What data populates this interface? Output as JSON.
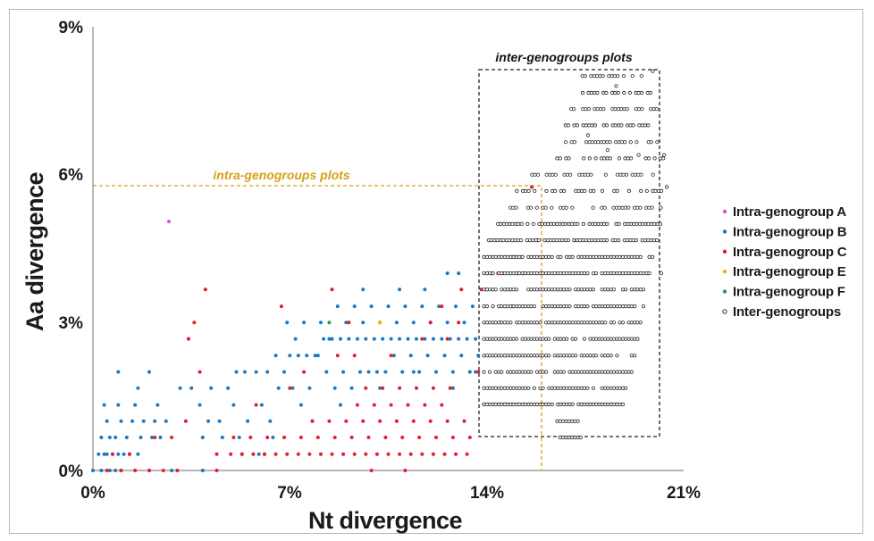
{
  "chart_data": {
    "type": "scatter",
    "xlabel": "Nt divergence",
    "ylabel": "Aa divergence",
    "x_ticks": [
      "0%",
      "7%",
      "14%",
      "21%"
    ],
    "y_ticks": [
      "0%",
      "3%",
      "6%",
      "9%"
    ],
    "xlim": [
      0,
      21
    ],
    "ylim": [
      0,
      9
    ],
    "grid": false,
    "legend_position": "right",
    "annotations": {
      "intra_box_label": "intra-genogroups plots",
      "inter_box_label": "inter-genogroups plots",
      "intra_region": {
        "x": [
          0,
          16
        ],
        "y": [
          0,
          5.75
        ]
      },
      "inter_region": {
        "x": [
          13.8,
          20.3
        ],
        "y": [
          0.7,
          8.1
        ]
      }
    },
    "series": [
      {
        "name": "Intra-genogroup A",
        "color": "#e84ac8",
        "marker": "filled",
        "x": [
          2.7
        ],
        "y": [
          5.05
        ]
      },
      {
        "name": "Intra-genogroup B",
        "color": "#1f78c0",
        "marker": "filled",
        "x": [
          0.2,
          0.4,
          0.5,
          0.7,
          0.9,
          1.1,
          1.3,
          1.6,
          0.3,
          0.6,
          0.8,
          1.2,
          1.7,
          2.1,
          2.4,
          0.5,
          1.0,
          1.4,
          1.8,
          2.2,
          2.6,
          0.4,
          0.9,
          1.5,
          2.3,
          3.1,
          3.5,
          3.8,
          4.2,
          4.8,
          5.1,
          5.4,
          5.8,
          6.2,
          6.5,
          6.8,
          7.0,
          7.3,
          7.6,
          7.9,
          8.2,
          8.5,
          8.8,
          9.1,
          9.4,
          9.7,
          10.0,
          10.3,
          10.6,
          10.9,
          11.2,
          11.5,
          11.8,
          12.1,
          12.4,
          12.7,
          13.0,
          13.3,
          13.6,
          4.5,
          5.0,
          5.5,
          6.0,
          6.6,
          7.1,
          7.7,
          8.3,
          8.9,
          9.5,
          10.1,
          10.7,
          11.3,
          11.9,
          12.5,
          13.1,
          13.7,
          5.2,
          6.3,
          7.4,
          8.6,
          9.2,
          9.8,
          10.4,
          11.0,
          11.6,
          12.2,
          12.8,
          13.4,
          6.9,
          7.5,
          8.1,
          8.7,
          9.3,
          9.9,
          10.5,
          11.1,
          11.7,
          12.3,
          12.9,
          13.5,
          7.2,
          8.4,
          9.0,
          9.6,
          10.2,
          10.8,
          11.4,
          12.0,
          12.6,
          13.2,
          8.0,
          9.6,
          10.9,
          11.8,
          12.6,
          13.0,
          3.9,
          4.1,
          4.6,
          5.3,
          5.9,
          6.4,
          7.8,
          8.8,
          10.2,
          11.4,
          12.8,
          13.6,
          1.6,
          2.0,
          0.9,
          3.4,
          0.0,
          0.3,
          0.6,
          0.8,
          1.0,
          2.0,
          2.8,
          3.9
        ],
        "y": [
          0.33,
          0.33,
          0.33,
          0.33,
          0.33,
          0.33,
          0.33,
          0.33,
          0.67,
          0.67,
          0.67,
          0.67,
          0.67,
          0.67,
          0.67,
          1.0,
          1.0,
          1.0,
          1.0,
          1.0,
          1.0,
          1.33,
          1.33,
          1.33,
          1.33,
          1.67,
          1.67,
          1.33,
          1.67,
          1.67,
          2.0,
          2.0,
          2.0,
          2.0,
          2.33,
          2.0,
          2.33,
          2.33,
          2.33,
          2.33,
          2.67,
          2.67,
          2.67,
          2.67,
          2.67,
          2.67,
          2.67,
          2.67,
          2.67,
          2.67,
          2.67,
          2.67,
          2.67,
          2.67,
          2.67,
          2.67,
          2.67,
          2.67,
          2.67,
          1.0,
          1.33,
          1.0,
          1.33,
          1.67,
          1.67,
          1.67,
          2.0,
          2.0,
          2.0,
          2.0,
          2.33,
          2.33,
          2.33,
          2.33,
          2.33,
          2.33,
          0.67,
          1.0,
          1.33,
          1.67,
          1.67,
          2.0,
          2.0,
          2.0,
          2.0,
          2.0,
          2.0,
          2.0,
          3.0,
          3.0,
          3.0,
          3.33,
          3.33,
          3.33,
          3.33,
          3.33,
          3.33,
          3.33,
          3.33,
          3.33,
          2.67,
          2.67,
          3.0,
          3.0,
          3.0,
          3.0,
          3.0,
          3.0,
          3.0,
          3.0,
          2.33,
          3.67,
          3.67,
          3.67,
          4.0,
          4.0,
          0.67,
          1.0,
          0.67,
          0.33,
          0.33,
          0.67,
          1.0,
          1.33,
          1.67,
          2.0,
          1.67,
          2.0,
          1.67,
          2.0,
          2.0,
          2.67,
          0.0,
          0.0,
          0.0,
          0.0,
          0.0,
          0.0,
          0.0,
          0.0
        ]
      },
      {
        "name": "Intra-genogroup C",
        "color": "#e0202a",
        "marker": "filled",
        "x": [
          0.5,
          1.0,
          1.5,
          2.0,
          2.5,
          3.0,
          0.7,
          1.3,
          2.2,
          2.8,
          3.3,
          3.6,
          4.0,
          4.4,
          4.9,
          5.3,
          5.7,
          6.1,
          6.5,
          6.9,
          7.3,
          7.7,
          8.1,
          8.5,
          8.9,
          9.3,
          9.7,
          10.1,
          10.5,
          10.9,
          11.3,
          11.7,
          12.1,
          12.5,
          12.9,
          13.3,
          13.7,
          14.1,
          14.5,
          14.9,
          15.3,
          5.0,
          5.6,
          6.2,
          6.8,
          7.4,
          8.0,
          8.6,
          9.2,
          9.8,
          10.4,
          11.0,
          11.6,
          12.2,
          12.8,
          13.4,
          14.0,
          14.6,
          15.2,
          7.8,
          8.4,
          9.0,
          9.6,
          10.2,
          10.8,
          11.4,
          12.0,
          12.6,
          13.2,
          13.8,
          14.4,
          15.0,
          15.6,
          9.4,
          10.0,
          10.6,
          11.2,
          11.8,
          12.4,
          9.7,
          10.3,
          10.9,
          11.5,
          12.1,
          12.7,
          3.4,
          3.8,
          7.0,
          7.5,
          8.7,
          9.3,
          10.6,
          11.7,
          12.0,
          12.6,
          13.0,
          14.2,
          14.9,
          15.1,
          15.8,
          16.0,
          8.5,
          9.1,
          12.4,
          13.1,
          4.4,
          6.1,
          5.8,
          6.7,
          9.9,
          11.1
        ],
        "y": [
          0.0,
          0.0,
          0.0,
          0.0,
          0.0,
          0.0,
          0.33,
          0.33,
          0.67,
          0.67,
          1.0,
          3.0,
          3.67,
          0.33,
          0.33,
          0.33,
          0.33,
          0.33,
          0.33,
          0.33,
          0.33,
          0.33,
          0.33,
          0.33,
          0.33,
          0.33,
          0.33,
          0.33,
          0.33,
          0.33,
          0.33,
          0.33,
          0.33,
          0.33,
          0.33,
          0.33,
          2.0,
          2.67,
          3.0,
          3.33,
          4.0,
          0.67,
          0.67,
          0.67,
          0.67,
          0.67,
          0.67,
          0.67,
          0.67,
          0.67,
          0.67,
          0.67,
          0.67,
          0.67,
          0.67,
          0.67,
          3.67,
          4.0,
          4.33,
          1.0,
          1.0,
          1.0,
          1.0,
          1.0,
          1.0,
          1.0,
          1.0,
          1.0,
          1.0,
          3.67,
          4.0,
          4.33,
          5.75,
          1.33,
          1.33,
          1.33,
          1.33,
          1.33,
          1.33,
          1.67,
          1.67,
          1.67,
          1.67,
          1.67,
          1.67,
          2.67,
          2.0,
          1.67,
          2.0,
          2.33,
          2.33,
          2.33,
          2.67,
          3.0,
          2.67,
          3.0,
          4.0,
          4.33,
          4.0,
          4.67,
          4.33,
          3.67,
          3.0,
          3.33,
          3.67,
          0.0,
          0.33,
          1.33,
          3.33,
          0.0,
          0.0
        ]
      },
      {
        "name": "Intra-genogroup E",
        "color": "#f0b400",
        "marker": "filled",
        "x": [
          10.2
        ],
        "y": [
          3.0
        ]
      },
      {
        "name": "Intra-genogroup F",
        "color": "#19a35a",
        "marker": "filled",
        "x": [
          8.4
        ],
        "y": [
          3.0
        ]
      },
      {
        "name": "Inter-genogroups",
        "color": "#222222",
        "marker": "open",
        "x": [],
        "y": []
      }
    ]
  },
  "legend": [
    {
      "label": "Intra-genogroup A",
      "color": "#e84ac8",
      "marker": "filled"
    },
    {
      "label": "Intra-genogroup B",
      "color": "#1f78c0",
      "marker": "filled"
    },
    {
      "label": "Intra-genogroup C",
      "color": "#e0202a",
      "marker": "filled"
    },
    {
      "label": "Intra-genogroup E",
      "color": "#f0b400",
      "marker": "filled"
    },
    {
      "label": "Intra-genogroup F",
      "color": "#19a35a",
      "marker": "filled"
    },
    {
      "label": "Inter-genogroups",
      "color": "#222222",
      "marker": "open"
    }
  ],
  "colors": {
    "intra_box": "#d4a017",
    "inter_box": "#222222",
    "axis": "#8a8a8a"
  }
}
